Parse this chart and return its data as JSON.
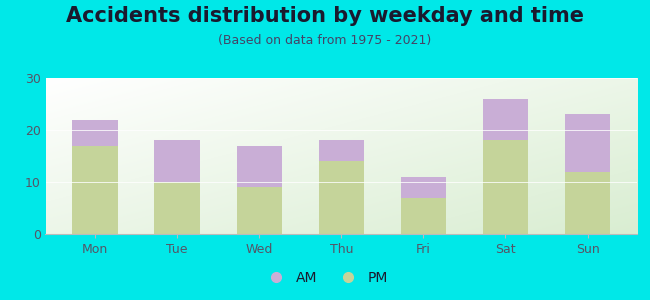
{
  "categories": [
    "Mon",
    "Tue",
    "Wed",
    "Thu",
    "Fri",
    "Sat",
    "Sun"
  ],
  "pm_values": [
    17,
    10,
    9,
    14,
    7,
    18,
    12
  ],
  "am_values": [
    5,
    8,
    8,
    4,
    4,
    8,
    11
  ],
  "am_color": "#c9aed6",
  "pm_color": "#c5d49a",
  "title": "Accidents distribution by weekday and time",
  "subtitle": "(Based on data from 1975 - 2021)",
  "ylim": [
    0,
    30
  ],
  "yticks": [
    0,
    10,
    20,
    30
  ],
  "outer_background": "#00e8e8",
  "legend_am": "AM",
  "legend_pm": "PM",
  "title_fontsize": 15,
  "subtitle_fontsize": 9,
  "tick_fontsize": 9,
  "legend_fontsize": 10,
  "title_color": "#1a1a2e",
  "subtitle_color": "#444466",
  "tick_color": "#555566"
}
